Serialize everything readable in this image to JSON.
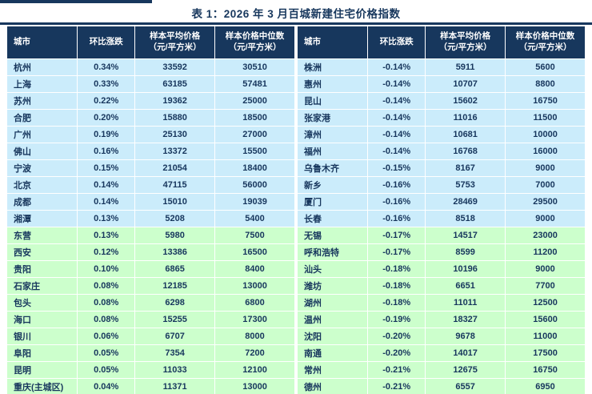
{
  "title": "表 1：2026 年 3 月百城新建住宅价格指数",
  "columns": [
    {
      "l1": "城市",
      "l2": ""
    },
    {
      "l1": "环比涨跌",
      "l2": ""
    },
    {
      "l1": "样本平均价格",
      "l2": "（元/平方米）"
    },
    {
      "l1": "样本价格中位数",
      "l2": "（元/平方米）"
    }
  ],
  "group_split_index": 10,
  "colors": {
    "header_bg": "#17375D",
    "text": "#17365D",
    "row_blue": "#CBECFB",
    "row_green": "#CCFFCC"
  },
  "left_rows": [
    [
      "杭州",
      "0.34%",
      "33592",
      "30510"
    ],
    [
      "上海",
      "0.33%",
      "63185",
      "57481"
    ],
    [
      "苏州",
      "0.22%",
      "19362",
      "25000"
    ],
    [
      "合肥",
      "0.20%",
      "15880",
      "18500"
    ],
    [
      "广州",
      "0.19%",
      "25130",
      "27000"
    ],
    [
      "佛山",
      "0.16%",
      "13372",
      "15500"
    ],
    [
      "宁波",
      "0.15%",
      "21054",
      "18400"
    ],
    [
      "北京",
      "0.14%",
      "47115",
      "56000"
    ],
    [
      "成都",
      "0.14%",
      "15010",
      "19039"
    ],
    [
      "湘潭",
      "0.13%",
      "5208",
      "5400"
    ],
    [
      "东营",
      "0.13%",
      "5980",
      "7500"
    ],
    [
      "西安",
      "0.12%",
      "13386",
      "16500"
    ],
    [
      "贵阳",
      "0.10%",
      "6865",
      "8400"
    ],
    [
      "石家庄",
      "0.08%",
      "12185",
      "13000"
    ],
    [
      "包头",
      "0.08%",
      "6298",
      "6800"
    ],
    [
      "海口",
      "0.08%",
      "15255",
      "17300"
    ],
    [
      "银川",
      "0.06%",
      "6707",
      "8000"
    ],
    [
      "阜阳",
      "0.05%",
      "7354",
      "7200"
    ],
    [
      "昆明",
      "0.05%",
      "11033",
      "12100"
    ],
    [
      "重庆(主城区)",
      "0.04%",
      "11371",
      "13000"
    ]
  ],
  "right_rows": [
    [
      "株洲",
      "-0.14%",
      "5911",
      "5600"
    ],
    [
      "惠州",
      "-0.14%",
      "10707",
      "8800"
    ],
    [
      "昆山",
      "-0.14%",
      "15602",
      "16750"
    ],
    [
      "张家港",
      "-0.14%",
      "11016",
      "11500"
    ],
    [
      "漳州",
      "-0.14%",
      "10681",
      "10000"
    ],
    [
      "福州",
      "-0.14%",
      "16768",
      "16000"
    ],
    [
      "乌鲁木齐",
      "-0.15%",
      "8167",
      "9000"
    ],
    [
      "新乡",
      "-0.16%",
      "5753",
      "7000"
    ],
    [
      "厦门",
      "-0.16%",
      "28469",
      "29500"
    ],
    [
      "长春",
      "-0.16%",
      "8518",
      "9000"
    ],
    [
      "无锡",
      "-0.17%",
      "14517",
      "23000"
    ],
    [
      "呼和浩特",
      "-0.17%",
      "8599",
      "11200"
    ],
    [
      "汕头",
      "-0.18%",
      "10196",
      "9000"
    ],
    [
      "潍坊",
      "-0.18%",
      "6651",
      "7700"
    ],
    [
      "湖州",
      "-0.18%",
      "11011",
      "12500"
    ],
    [
      "温州",
      "-0.19%",
      "18327",
      "15600"
    ],
    [
      "沈阳",
      "-0.20%",
      "9678",
      "11000"
    ],
    [
      "南通",
      "-0.20%",
      "14017",
      "17500"
    ],
    [
      "常州",
      "-0.21%",
      "12675",
      "16750"
    ],
    [
      "德州",
      "-0.21%",
      "6557",
      "6950"
    ]
  ]
}
